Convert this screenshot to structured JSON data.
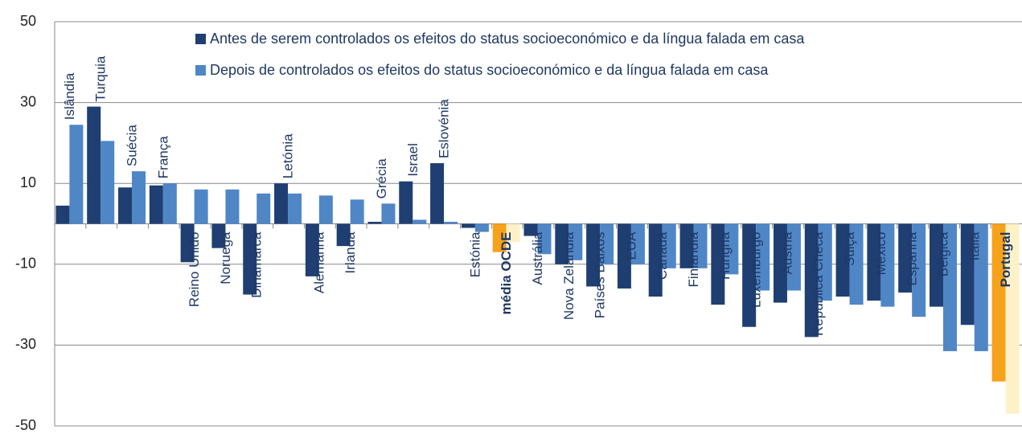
{
  "chart_data": {
    "type": "bar",
    "categories": [
      "Islândia",
      "Turquia",
      "Suécia",
      "França",
      "Reino Unido",
      "Noruega",
      "Dinamarca",
      "Letónia",
      "Alemanha",
      "Irlanda",
      "Grécia",
      "Israel",
      "Eslovénia",
      "Estónia",
      "média OCDE",
      "Austrália",
      "Nova Zelândia",
      "Países Baixos",
      "EUA",
      "Canadá",
      "Finlândia",
      "Hungria",
      "Luxemburgo",
      "Áustria",
      "República Checa",
      "Suiça",
      "México",
      "Espanha",
      "Bélgica",
      "Itália",
      "Portugal"
    ],
    "series": [
      {
        "name": "Antes de serem controlados os efeitos  do status socioeconómico e da língua falada em casa",
        "color": "#1f3f73",
        "highlight_color": "#f7a21b",
        "values": [
          4.5,
          29,
          9,
          9.5,
          -9.5,
          -6,
          -17.5,
          10,
          -13,
          -5.5,
          0.5,
          10.5,
          15,
          -1,
          -7,
          -3,
          -10,
          -15.5,
          -16,
          -18,
          -11,
          -20,
          -25.5,
          -19.5,
          -28,
          -18,
          -19,
          -17,
          -20.5,
          -25,
          -39
        ]
      },
      {
        "name": "Depois de controlados os efeitos do status socioeconómico e da língua falada em casa",
        "color": "#4f86c6",
        "highlight_color": "#fdf2c7",
        "values": [
          24.5,
          20.5,
          13,
          10,
          8.5,
          8.5,
          7.5,
          7.5,
          7,
          6,
          5,
          1,
          0.5,
          -2,
          -4.5,
          -7.5,
          -9,
          -10,
          -10,
          -11,
          -11,
          -12.5,
          -16.5,
          -16.5,
          -19,
          -20,
          -20.5,
          -23,
          -31.5,
          -31.5,
          -47
        ]
      }
    ],
    "highlight": [
      "média OCDE",
      "Portugal"
    ],
    "ylim": [
      -50,
      50
    ],
    "yticks": [
      -50,
      -30,
      -10,
      10,
      30,
      50
    ],
    "grid": true
  }
}
